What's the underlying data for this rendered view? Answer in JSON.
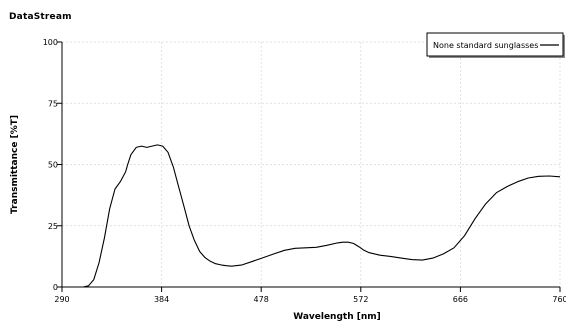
{
  "app": {
    "title": "DataStream"
  },
  "chart_data": {
    "type": "line",
    "xlabel": "Wavelength [nm]",
    "ylabel": "Transmittance [%T]",
    "xlim": [
      290,
      760
    ],
    "ylim": [
      0,
      100
    ],
    "x_ticks": [
      290,
      384,
      478,
      572,
      666,
      760
    ],
    "y_ticks": [
      0,
      25,
      50,
      75,
      100
    ],
    "grid": true,
    "legend_position": "top-right",
    "line_color": "#000000",
    "series": [
      {
        "name": "None standard sunglasses",
        "x": [
          290,
          310,
          315,
          320,
          325,
          330,
          335,
          340,
          345,
          350,
          352,
          355,
          360,
          365,
          370,
          375,
          380,
          385,
          390,
          395,
          400,
          405,
          410,
          415,
          420,
          425,
          430,
          435,
          440,
          445,
          450,
          460,
          470,
          480,
          490,
          500,
          510,
          520,
          530,
          540,
          550,
          555,
          560,
          565,
          570,
          575,
          580,
          590,
          600,
          610,
          620,
          630,
          640,
          650,
          660,
          670,
          680,
          690,
          700,
          710,
          720,
          730,
          740,
          750,
          760
        ],
        "y": [
          0,
          0,
          0.5,
          3,
          10,
          20,
          32,
          40,
          43,
          47,
          50,
          54,
          57,
          57.5,
          57,
          57.5,
          58,
          57.5,
          55,
          49,
          41,
          33,
          25,
          19,
          14.5,
          12,
          10.5,
          9.5,
          9,
          8.7,
          8.5,
          9,
          10.5,
          12,
          13.5,
          15,
          15.8,
          16,
          16.2,
          17,
          18,
          18.3,
          18.3,
          17.8,
          16.5,
          15,
          14,
          13,
          12.5,
          11.8,
          11.2,
          11,
          11.8,
          13.5,
          16,
          21,
          28,
          34,
          38.5,
          41,
          43,
          44.5,
          45.2,
          45.3,
          45
        ]
      }
    ]
  }
}
